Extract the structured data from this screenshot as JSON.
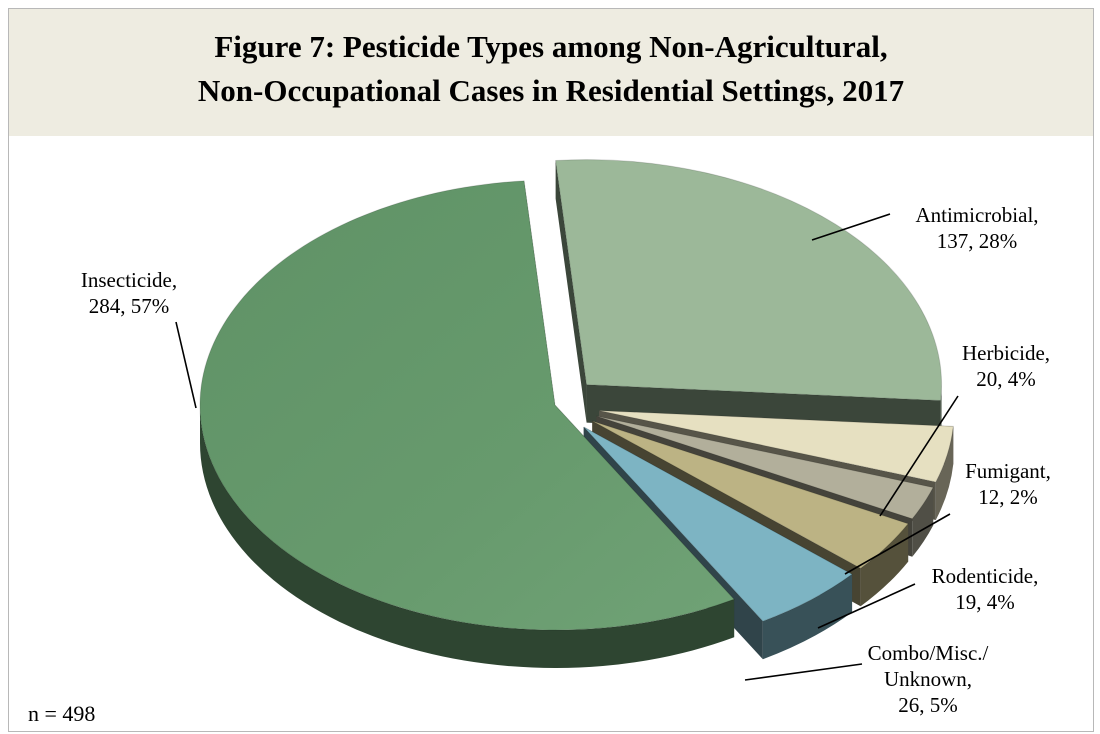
{
  "chart_data": {
    "type": "pie",
    "title_lines": [
      "Figure 7: Pesticide Types among Non-Agricultural,",
      "Non-Occupational Cases in Residential Settings, 2017"
    ],
    "note": "n = 498",
    "slices": [
      {
        "name": "Antimicrobial",
        "value": 137,
        "percent": "28%",
        "label_lines": [
          "Antimicrobial,",
          "137, 28%"
        ],
        "color": "#9cb899",
        "exploded": true
      },
      {
        "name": "Herbicide",
        "value": 20,
        "percent": "4%",
        "label_lines": [
          "Herbicide,",
          "20, 4%"
        ],
        "color": "#e6e0c1",
        "exploded": true
      },
      {
        "name": "Fumigant",
        "value": 12,
        "percent": "2%",
        "label_lines": [
          "Fumigant,",
          "12, 2%"
        ],
        "color": "#b2af9b",
        "exploded": true
      },
      {
        "name": "Rodenticide",
        "value": 19,
        "percent": "4%",
        "label_lines": [
          "Rodenticide,",
          "19, 4%"
        ],
        "color": "#bcb384",
        "exploded": true
      },
      {
        "name": "Combo/Misc./Unknown",
        "value": 26,
        "percent": "5%",
        "label_lines": [
          "Combo/Misc./",
          "Unknown,",
          "26, 5%"
        ],
        "color": "#7db4c3",
        "exploded": true
      },
      {
        "name": "Insecticide",
        "value": 284,
        "percent": "57%",
        "label_lines": [
          "Insecticide,",
          "284, 57%"
        ],
        "color": "#679a6d",
        "exploded": false
      }
    ]
  }
}
